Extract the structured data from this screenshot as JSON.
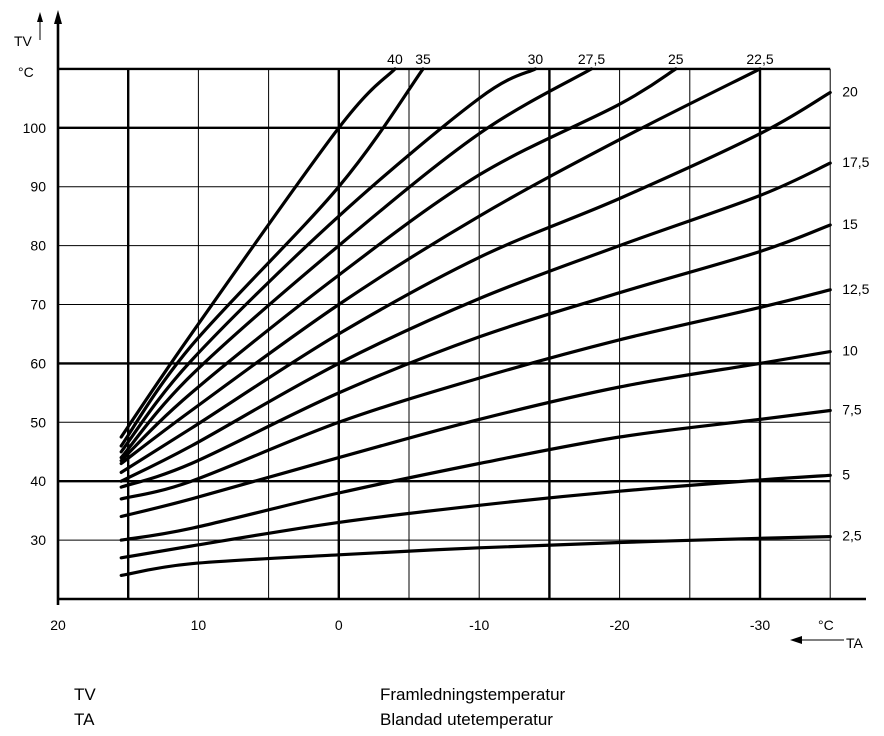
{
  "chart_data": {
    "type": "line",
    "title": "",
    "y_axis": {
      "symbol": "TV",
      "unit": "°C",
      "ticks": [
        30,
        40,
        50,
        60,
        70,
        80,
        90,
        100
      ],
      "range": [
        20,
        110
      ]
    },
    "x_axis": {
      "symbol": "TA",
      "unit": "°C",
      "ticks": [
        20,
        10,
        0,
        -10,
        -20,
        -30
      ],
      "range": [
        20,
        -35
      ],
      "reversed": true
    },
    "grid": true,
    "series": [
      {
        "name": "2,5",
        "points": [
          [
            15.5,
            24
          ],
          [
            10.5,
            26
          ],
          [
            0,
            27.5
          ],
          [
            -10,
            28.7
          ],
          [
            -20,
            29.6
          ],
          [
            -30,
            30.3
          ],
          [
            -35,
            30.6
          ]
        ]
      },
      {
        "name": "5",
        "points": [
          [
            15.5,
            27
          ],
          [
            10.5,
            29
          ],
          [
            0,
            33
          ],
          [
            -10,
            35.9
          ],
          [
            -20,
            38.3
          ],
          [
            -30,
            40.2
          ],
          [
            -35,
            41
          ]
        ]
      },
      {
        "name": "7,5",
        "points": [
          [
            15.5,
            30
          ],
          [
            10.5,
            32
          ],
          [
            0,
            38
          ],
          [
            -10,
            43
          ],
          [
            -20,
            47.5
          ],
          [
            -30,
            50.5
          ],
          [
            -35,
            52
          ]
        ]
      },
      {
        "name": "10",
        "points": [
          [
            15.5,
            34
          ],
          [
            10.5,
            37
          ],
          [
            0,
            44
          ],
          [
            -10,
            50.5
          ],
          [
            -20,
            56
          ],
          [
            -30,
            60
          ],
          [
            -35,
            62
          ]
        ]
      },
      {
        "name": "12,5",
        "points": [
          [
            15.5,
            37
          ],
          [
            10.5,
            40
          ],
          [
            0,
            50
          ],
          [
            -10,
            57.5
          ],
          [
            -20,
            64
          ],
          [
            -30,
            69.5
          ],
          [
            -35,
            72.5
          ]
        ]
      },
      {
        "name": "15",
        "points": [
          [
            15.5,
            39
          ],
          [
            10.5,
            43
          ],
          [
            0,
            55
          ],
          [
            -10,
            64.5
          ],
          [
            -20,
            72
          ],
          [
            -30,
            79
          ],
          [
            -35,
            83.5
          ]
        ]
      },
      {
        "name": "17,5",
        "points": [
          [
            15.5,
            40
          ],
          [
            10.5,
            46
          ],
          [
            0,
            60
          ],
          [
            -10,
            71
          ],
          [
            -20,
            80
          ],
          [
            -30,
            88.5
          ],
          [
            -35,
            94
          ]
        ]
      },
      {
        "name": "20",
        "points": [
          [
            15.5,
            41.5
          ],
          [
            10.5,
            49
          ],
          [
            0,
            65
          ],
          [
            -10,
            78
          ],
          [
            -20,
            88
          ],
          [
            -30,
            99
          ],
          [
            -35,
            106
          ]
        ]
      },
      {
        "name": "22,5",
        "points": [
          [
            15.5,
            43
          ],
          [
            10.5,
            52
          ],
          [
            0,
            70
          ],
          [
            -10,
            85
          ],
          [
            -20,
            98
          ],
          [
            -30,
            110
          ]
        ]
      },
      {
        "name": "25",
        "points": [
          [
            15.5,
            43.5
          ],
          [
            10.5,
            55
          ],
          [
            0,
            75
          ],
          [
            -10,
            92
          ],
          [
            -20,
            104
          ],
          [
            -24,
            110
          ]
        ]
      },
      {
        "name": "27,5",
        "points": [
          [
            15.5,
            44
          ],
          [
            10.5,
            58
          ],
          [
            0,
            80
          ],
          [
            -10,
            99
          ],
          [
            -18,
            110
          ]
        ]
      },
      {
        "name": "30",
        "points": [
          [
            15.5,
            45
          ],
          [
            10.5,
            60.5
          ],
          [
            0,
            85
          ],
          [
            -10,
            105
          ],
          [
            -14,
            110
          ]
        ]
      },
      {
        "name": "35",
        "points": [
          [
            15.5,
            46
          ],
          [
            10.5,
            63
          ],
          [
            0,
            90
          ],
          [
            -6,
            110
          ]
        ]
      },
      {
        "name": "40",
        "points": [
          [
            15.5,
            47.5
          ],
          [
            10.5,
            65
          ],
          [
            0,
            100
          ],
          [
            -4,
            110
          ]
        ]
      }
    ]
  },
  "legend": [
    {
      "abbr": "TV",
      "desc": "Framledningstemperatur"
    },
    {
      "abbr": "TA",
      "desc": "Blandad utetemperatur"
    }
  ]
}
